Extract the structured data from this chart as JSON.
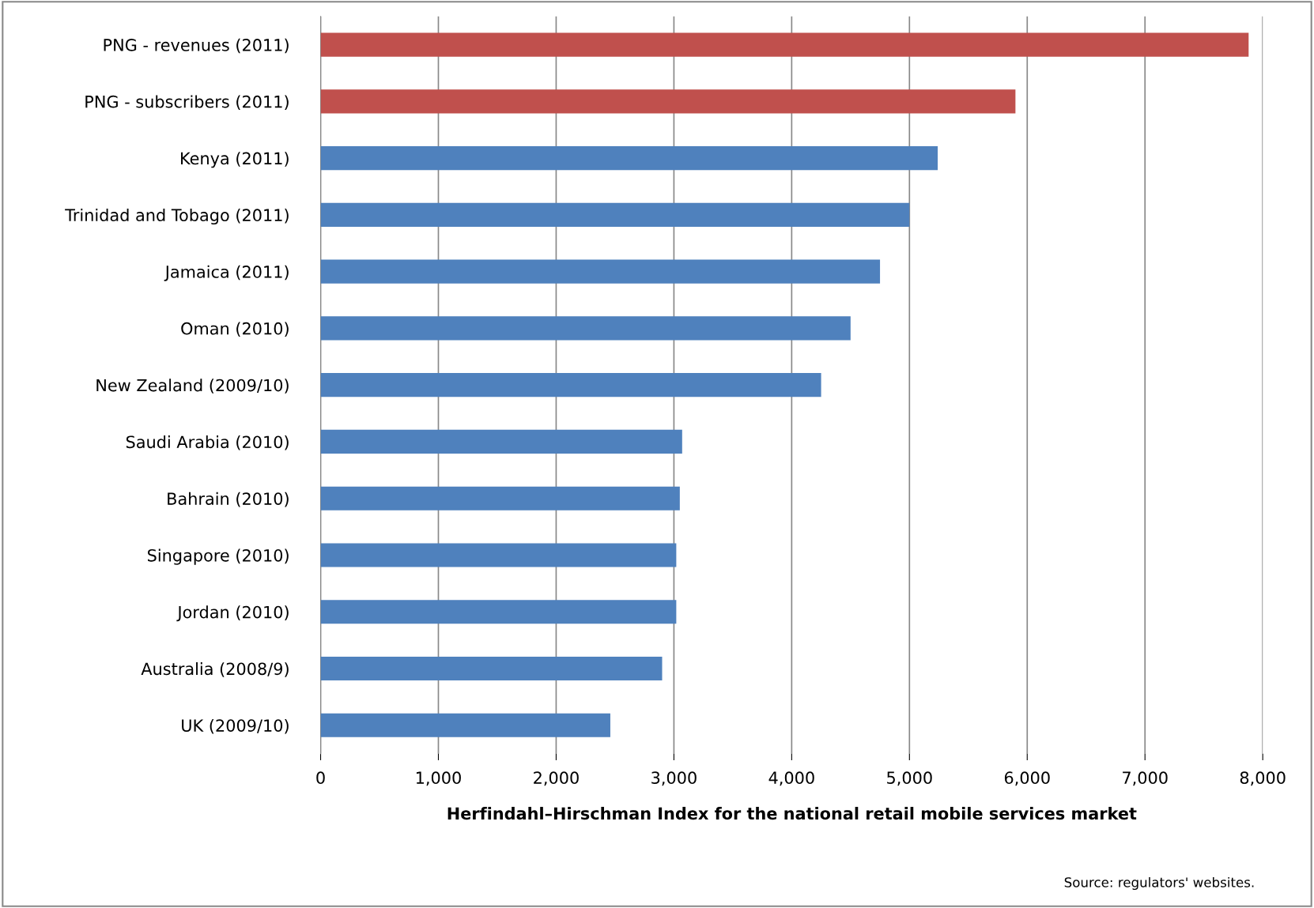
{
  "chart_data": {
    "type": "bar",
    "orientation": "horizontal",
    "xlabel": "Herfindahl–Hirschman Index for the national retail mobile services market",
    "categories": [
      "PNG - revenues (2011)",
      "PNG - subscribers (2011)",
      "Kenya (2011)",
      "Trinidad and Tobago (2011)",
      "Jamaica (2011)",
      "Oman (2010)",
      "New Zealand (2009/10)",
      "Saudi Arabia (2010)",
      "Bahrain (2010)",
      "Singapore (2010)",
      "Jordan (2010)",
      "Australia (2008/9)",
      "UK (2009/10)"
    ],
    "values": [
      7880,
      5900,
      5240,
      5000,
      4750,
      4500,
      4250,
      3070,
      3050,
      3020,
      3020,
      2900,
      2460
    ],
    "colors": [
      "#c0504d",
      "#c0504d",
      "#4f81bd",
      "#4f81bd",
      "#4f81bd",
      "#4f81bd",
      "#4f81bd",
      "#4f81bd",
      "#4f81bd",
      "#4f81bd",
      "#4f81bd",
      "#4f81bd",
      "#4f81bd"
    ],
    "xlim": [
      0,
      8000
    ],
    "xticks": [
      0,
      {
        "value": 1000,
        "label": "1,000"
      },
      {
        "value": 2000,
        "label": "2,000"
      },
      {
        "value": 3000,
        "label": "3,000"
      },
      {
        "value": 4000,
        "label": "4,000"
      },
      {
        "value": 5000,
        "label": "5,000"
      },
      {
        "value": 6000,
        "label": "6,000"
      },
      {
        "value": 7000,
        "label": "7,000"
      },
      {
        "value": 8000,
        "label": "8,000"
      }
    ],
    "grid": "x",
    "annotations": [
      "Source: regulators' websites."
    ]
  }
}
